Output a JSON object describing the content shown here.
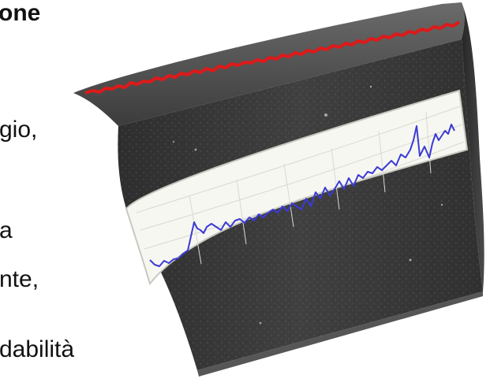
{
  "text_fragments": [
    {
      "id": "line_1",
      "text": "one",
      "bold": true
    },
    {
      "id": "line_2",
      "text": "gio,",
      "bold": false
    },
    {
      "id": "line_3",
      "text": "a",
      "bold": false
    },
    {
      "id": "line_4",
      "text": "nte,",
      "bold": false
    },
    {
      "id": "line_5",
      "text": "dabilità",
      "bold": false
    }
  ],
  "illustration": {
    "subject": "curved asphalt road section with surface profile chart",
    "road_color": "#3a3a3a",
    "profile_line_color": "#dd1a1a",
    "chart_line_color": "#3b3bd6",
    "chart_background": "#f7f7f2"
  }
}
